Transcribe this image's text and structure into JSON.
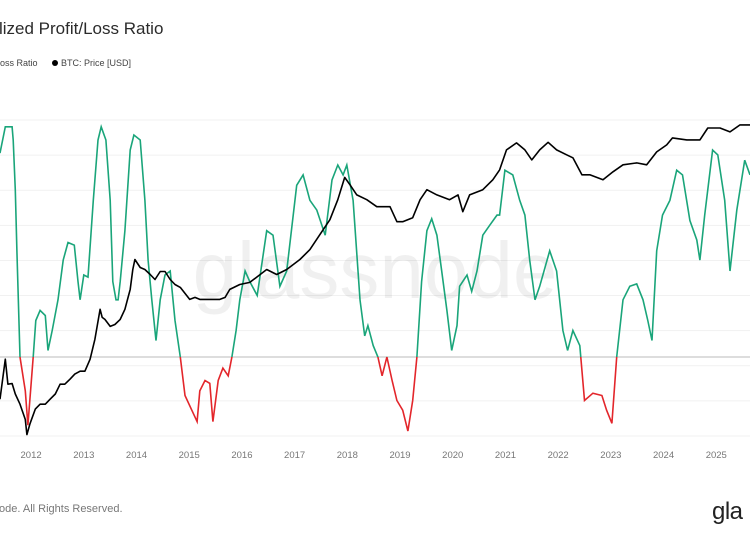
{
  "header": {
    "title": "lized Profit/Loss Ratio"
  },
  "legend": [
    {
      "label": "oss Ratio",
      "color": "#1aa57a"
    },
    {
      "label": "BTC: Price [USD]",
      "color": "#000000"
    }
  ],
  "footer": {
    "copyright": "ode. All Rights Reserved.",
    "logo": "gla"
  },
  "watermark": "glassnode",
  "chart_data": {
    "type": "line",
    "title": "lized Profit/Loss Ratio",
    "x_ticks": [
      "2012",
      "2013",
      "2014",
      "2015",
      "2016",
      "2017",
      "2018",
      "2019",
      "2020",
      "2021",
      "2022",
      "2023",
      "2024",
      "2025"
    ],
    "xlim": [
      2011.41,
      2025.64
    ],
    "grid": "horizontal",
    "legend_position": "top-left",
    "baseline": 1,
    "colors": {
      "above": "#1aa57a",
      "below": "#e3262b",
      "price": "#000000",
      "baseline": "#bbbbbb"
    },
    "series": [
      {
        "name": "oss Ratio",
        "axis": "left",
        "scale": "log",
        "ylim": [
          0.316,
          31.6
        ],
        "points": [
          [
            2011.41,
            19.5
          ],
          [
            2011.51,
            28.6
          ],
          [
            2011.64,
            28.6
          ],
          [
            2011.66,
            23.6
          ],
          [
            2011.7,
            11.4
          ],
          [
            2011.73,
            4.7
          ],
          [
            2011.79,
            1.0
          ],
          [
            2011.89,
            0.61
          ],
          [
            2011.94,
            0.37
          ],
          [
            2012.04,
            1.0
          ],
          [
            2012.09,
            1.7
          ],
          [
            2012.17,
            1.97
          ],
          [
            2012.27,
            1.83
          ],
          [
            2012.32,
            1.1
          ],
          [
            2012.4,
            1.47
          ],
          [
            2012.51,
            2.3
          ],
          [
            2012.61,
            4.1
          ],
          [
            2012.7,
            5.3
          ],
          [
            2012.82,
            5.1
          ],
          [
            2012.89,
            3.0
          ],
          [
            2012.93,
            2.3
          ],
          [
            2013.0,
            3.3
          ],
          [
            2013.08,
            3.2
          ],
          [
            2013.18,
            9.8
          ],
          [
            2013.27,
            23.6
          ],
          [
            2013.33,
            28.6
          ],
          [
            2013.42,
            23.6
          ],
          [
            2013.5,
            9.8
          ],
          [
            2013.55,
            3.0
          ],
          [
            2013.61,
            2.3
          ],
          [
            2013.65,
            2.3
          ],
          [
            2013.69,
            3.0
          ],
          [
            2013.78,
            6.3
          ],
          [
            2013.88,
            20.4
          ],
          [
            2013.95,
            25.4
          ],
          [
            2014.07,
            23.6
          ],
          [
            2014.16,
            9.8
          ],
          [
            2014.22,
            4.1
          ],
          [
            2014.29,
            2.3
          ],
          [
            2014.37,
            1.27
          ],
          [
            2014.45,
            2.3
          ],
          [
            2014.54,
            3.3
          ],
          [
            2014.64,
            3.5
          ],
          [
            2014.73,
            1.7
          ],
          [
            2014.83,
            1.0
          ],
          [
            2014.92,
            0.57
          ],
          [
            2015.05,
            0.46
          ],
          [
            2015.15,
            0.39
          ],
          [
            2015.2,
            0.61
          ],
          [
            2015.3,
            0.71
          ],
          [
            2015.39,
            0.68
          ],
          [
            2015.45,
            0.39
          ],
          [
            2015.55,
            0.71
          ],
          [
            2015.64,
            0.85
          ],
          [
            2015.74,
            0.76
          ],
          [
            2015.81,
            1.0
          ],
          [
            2015.89,
            1.47
          ],
          [
            2015.96,
            2.3
          ],
          [
            2016.06,
            3.5
          ],
          [
            2016.15,
            3.0
          ],
          [
            2016.29,
            2.45
          ],
          [
            2016.47,
            6.3
          ],
          [
            2016.59,
            5.9
          ],
          [
            2016.72,
            2.8
          ],
          [
            2016.85,
            3.5
          ],
          [
            2017.04,
            12.2
          ],
          [
            2017.16,
            14.2
          ],
          [
            2017.29,
            9.8
          ],
          [
            2017.42,
            8.5
          ],
          [
            2017.58,
            5.9
          ],
          [
            2017.71,
            13.2
          ],
          [
            2017.82,
            16.4
          ],
          [
            2017.92,
            14.2
          ],
          [
            2017.99,
            16.4
          ],
          [
            2018.11,
            9.8
          ],
          [
            2018.24,
            2.3
          ],
          [
            2018.33,
            1.36
          ],
          [
            2018.39,
            1.58
          ],
          [
            2018.49,
            1.18
          ],
          [
            2018.58,
            1.0
          ],
          [
            2018.66,
            0.76
          ],
          [
            2018.75,
            1.0
          ],
          [
            2018.85,
            0.71
          ],
          [
            2018.94,
            0.53
          ],
          [
            2019.05,
            0.46
          ],
          [
            2019.15,
            0.34
          ],
          [
            2019.24,
            0.53
          ],
          [
            2019.32,
            1.0
          ],
          [
            2019.41,
            3.0
          ],
          [
            2019.51,
            6.3
          ],
          [
            2019.6,
            7.5
          ],
          [
            2019.7,
            5.9
          ],
          [
            2019.79,
            3.5
          ],
          [
            2019.89,
            1.97
          ],
          [
            2019.98,
            1.1
          ],
          [
            2020.08,
            1.58
          ],
          [
            2020.13,
            2.8
          ],
          [
            2020.27,
            3.3
          ],
          [
            2020.36,
            2.6
          ],
          [
            2020.46,
            3.5
          ],
          [
            2020.57,
            5.9
          ],
          [
            2020.7,
            6.8
          ],
          [
            2020.84,
            7.9
          ],
          [
            2020.89,
            7.9
          ],
          [
            2020.99,
            15.2
          ],
          [
            2021.14,
            14.2
          ],
          [
            2021.27,
            9.8
          ],
          [
            2021.37,
            7.9
          ],
          [
            2021.46,
            4.1
          ],
          [
            2021.56,
            2.3
          ],
          [
            2021.65,
            2.8
          ],
          [
            2021.84,
            4.7
          ],
          [
            2021.97,
            3.5
          ],
          [
            2022.09,
            1.47
          ],
          [
            2022.18,
            1.1
          ],
          [
            2022.28,
            1.47
          ],
          [
            2022.41,
            1.18
          ],
          [
            2022.5,
            0.53
          ],
          [
            2022.66,
            0.59
          ],
          [
            2022.83,
            0.57
          ],
          [
            2022.92,
            0.46
          ],
          [
            2023.02,
            0.38
          ],
          [
            2023.11,
            1.0
          ],
          [
            2023.23,
            2.3
          ],
          [
            2023.36,
            2.8
          ],
          [
            2023.49,
            2.9
          ],
          [
            2023.61,
            2.3
          ],
          [
            2023.7,
            1.7
          ],
          [
            2023.78,
            1.27
          ],
          [
            2023.87,
            4.7
          ],
          [
            2023.98,
            7.9
          ],
          [
            2024.12,
            9.8
          ],
          [
            2024.25,
            15.2
          ],
          [
            2024.36,
            14.2
          ],
          [
            2024.5,
            7.3
          ],
          [
            2024.63,
            5.5
          ],
          [
            2024.69,
            4.1
          ],
          [
            2024.78,
            7.9
          ],
          [
            2024.93,
            20.4
          ],
          [
            2025.03,
            19.0
          ],
          [
            2025.16,
            9.8
          ],
          [
            2025.26,
            3.5
          ],
          [
            2025.39,
            8.5
          ],
          [
            2025.54,
            17.6
          ],
          [
            2025.64,
            14.2
          ]
        ]
      },
      {
        "name": "BTC: Price [USD]",
        "axis": "right",
        "scale": "log",
        "ylim": [
          2,
          150000
        ],
        "points": [
          [
            2011.41,
            7.4
          ],
          [
            2011.51,
            30.6
          ],
          [
            2011.56,
            12.6
          ],
          [
            2011.64,
            12.9
          ],
          [
            2011.7,
            8.9
          ],
          [
            2011.79,
            6.2
          ],
          [
            2011.89,
            3.6
          ],
          [
            2011.92,
            2.1
          ],
          [
            2011.98,
            3.1
          ],
          [
            2012.08,
            5.2
          ],
          [
            2012.17,
            6.2
          ],
          [
            2012.27,
            6.2
          ],
          [
            2012.36,
            7.4
          ],
          [
            2012.46,
            8.9
          ],
          [
            2012.55,
            12.6
          ],
          [
            2012.64,
            12.6
          ],
          [
            2012.74,
            15.1
          ],
          [
            2012.83,
            18
          ],
          [
            2012.93,
            20
          ],
          [
            2013.02,
            20
          ],
          [
            2013.12,
            30.6
          ],
          [
            2013.21,
            62
          ],
          [
            2013.31,
            180
          ],
          [
            2013.35,
            135
          ],
          [
            2013.4,
            126
          ],
          [
            2013.5,
            98
          ],
          [
            2013.59,
            105
          ],
          [
            2013.69,
            126
          ],
          [
            2013.78,
            180
          ],
          [
            2013.88,
            365
          ],
          [
            2013.93,
            740
          ],
          [
            2013.97,
            1055
          ],
          [
            2014.07,
            795
          ],
          [
            2014.16,
            740
          ],
          [
            2014.26,
            620
          ],
          [
            2014.35,
            520
          ],
          [
            2014.45,
            690
          ],
          [
            2014.54,
            690
          ],
          [
            2014.64,
            520
          ],
          [
            2014.73,
            435
          ],
          [
            2014.83,
            392
          ],
          [
            2015.01,
            256
          ],
          [
            2015.11,
            275
          ],
          [
            2015.2,
            256
          ],
          [
            2015.39,
            256
          ],
          [
            2015.58,
            256
          ],
          [
            2015.68,
            275
          ],
          [
            2015.77,
            365
          ],
          [
            2015.96,
            435
          ],
          [
            2016.15,
            468
          ],
          [
            2016.47,
            740
          ],
          [
            2016.66,
            620
          ],
          [
            2016.85,
            740
          ],
          [
            2017.1,
            1055
          ],
          [
            2017.29,
            1500
          ],
          [
            2017.48,
            2560
          ],
          [
            2017.67,
            4350
          ],
          [
            2017.82,
            8830
          ],
          [
            2017.95,
            19500
          ],
          [
            2018.05,
            15000
          ],
          [
            2018.18,
            10500
          ],
          [
            2018.37,
            8830
          ],
          [
            2018.56,
            6900
          ],
          [
            2018.81,
            6900
          ],
          [
            2018.94,
            4050
          ],
          [
            2019.05,
            4050
          ],
          [
            2019.24,
            4670
          ],
          [
            2019.38,
            8830
          ],
          [
            2019.51,
            12600
          ],
          [
            2019.7,
            10500
          ],
          [
            2019.94,
            8830
          ],
          [
            2020.1,
            10500
          ],
          [
            2020.19,
            5770
          ],
          [
            2020.32,
            10500
          ],
          [
            2020.57,
            12600
          ],
          [
            2020.76,
            17900
          ],
          [
            2020.89,
            25500
          ],
          [
            2021.02,
            51900
          ],
          [
            2021.21,
            66500
          ],
          [
            2021.37,
            51900
          ],
          [
            2021.5,
            36400
          ],
          [
            2021.65,
            51900
          ],
          [
            2021.81,
            68000
          ],
          [
            2021.97,
            51900
          ],
          [
            2022.16,
            43500
          ],
          [
            2022.28,
            39100
          ],
          [
            2022.45,
            21400
          ],
          [
            2022.6,
            21400
          ],
          [
            2022.85,
            17900
          ],
          [
            2023.04,
            23800
          ],
          [
            2023.23,
            30500
          ],
          [
            2023.49,
            32700
          ],
          [
            2023.68,
            30500
          ],
          [
            2023.87,
            48300
          ],
          [
            2024.06,
            62000
          ],
          [
            2024.17,
            79400
          ],
          [
            2024.44,
            73900
          ],
          [
            2024.69,
            73900
          ],
          [
            2024.84,
            113000
          ],
          [
            2025.07,
            113000
          ],
          [
            2025.26,
            98200
          ],
          [
            2025.45,
            126000
          ],
          [
            2025.64,
            126000
          ]
        ]
      }
    ]
  }
}
